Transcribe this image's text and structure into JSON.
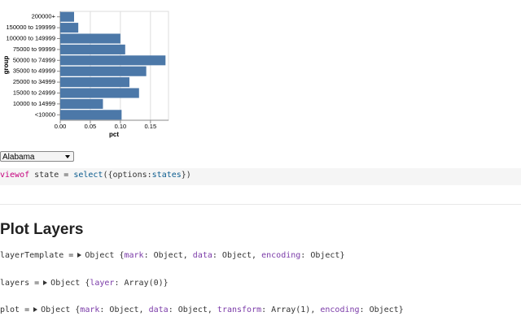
{
  "chart_data": {
    "type": "bar",
    "orientation": "horizontal",
    "color": "#4c78a8",
    "grid": true,
    "x_label": "pct",
    "y_label": "group",
    "categories": [
      "200000+",
      "150000 to 199999",
      "100000 to 149999",
      "75000 to 99999",
      "50000 to 74999",
      "35000 to 49999",
      "25000 to 34999",
      "15000 to 24999",
      "10000 to 14999",
      "<10000"
    ],
    "values": [
      0.023,
      0.03,
      0.1,
      0.108,
      0.175,
      0.143,
      0.115,
      0.131,
      0.071,
      0.102
    ],
    "xlim": [
      0,
      0.18
    ],
    "xticks": [
      {
        "value": 0,
        "label": "0.00"
      },
      0.05,
      {
        "value": 0.1,
        "label": "0.10"
      },
      0.15
    ]
  },
  "select": {
    "value": "Alabama"
  },
  "cells": [
    [
      "viewof",
      " state = ",
      "select",
      "({options:",
      "states",
      "})"
    ],
    [
      "layerTemplate =",
      "Object {",
      "mark",
      ": Object, ",
      "data",
      ": Object, ",
      "encoding",
      ": Object}"
    ],
    [
      "layers =",
      "Object {",
      "layer",
      ": Array(0)}"
    ],
    [
      "plot =",
      "Object {",
      "mark",
      ": Object, ",
      "data",
      ": Object, ",
      "transform",
      ": Array(1), ",
      "encoding",
      ": Object}"
    ]
  ],
  "heading": "Plot Layers"
}
